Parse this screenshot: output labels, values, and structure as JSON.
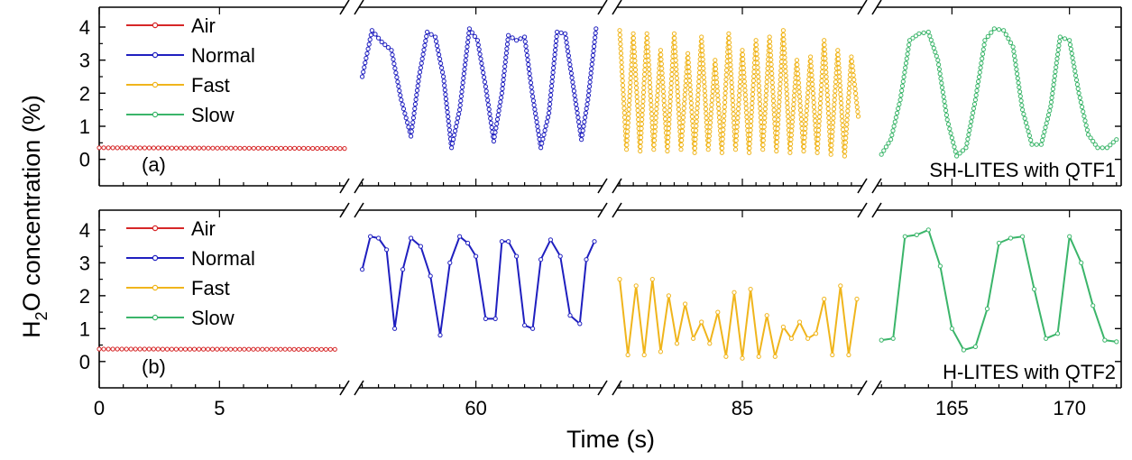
{
  "chart_data": {
    "type": "line",
    "xlabel": "Time (s)",
    "ylabel_parts": {
      "pre": "H",
      "sub": "2",
      "post": "O concentration (%)"
    },
    "ylim": [
      -0.8,
      4.6
    ],
    "yticks": [
      "0",
      "1",
      "2",
      "3",
      "4"
    ],
    "ytick_values": [
      0,
      1,
      2,
      3,
      4
    ],
    "x_segments": [
      {
        "xlim": [
          0,
          10.2
        ],
        "ticks": [
          0,
          5
        ],
        "tick_labels": [
          "0",
          "5"
        ]
      },
      {
        "xlim": [
          52.8,
          67.8
        ],
        "ticks": [
          60
        ],
        "tick_labels": [
          "60"
        ]
      },
      {
        "xlim": [
          75.8,
          93.8
        ],
        "ticks": [
          85
        ],
        "tick_labels": [
          "85"
        ]
      },
      {
        "xlim": [
          161.8,
          172.2
        ],
        "ticks": [
          165,
          170
        ],
        "tick_labels": [
          "165",
          "170"
        ]
      }
    ],
    "legend": {
      "position": "top-left",
      "entries": [
        {
          "name": "Air",
          "color": "#d62728"
        },
        {
          "name": "Normal",
          "color": "#1f1fbf"
        },
        {
          "name": "Fast",
          "color": "#f0b51c"
        },
        {
          "name": "Slow",
          "color": "#3bb56a"
        }
      ]
    },
    "panels": [
      {
        "label": "(a)",
        "method": "SH-LITES with QTF1",
        "series": [
          {
            "name": "Air",
            "segment": 0,
            "color": "#d62728",
            "x": [
              0,
              10.2
            ],
            "y": [
              0.35,
              0.33
            ],
            "dense": true
          },
          {
            "name": "Normal",
            "segment": 1,
            "color": "#1f1fbf",
            "dense": true,
            "x": [
              53.0,
              53.6,
              54.2,
              54.8,
              55.4,
              56.0,
              56.5,
              57.0,
              57.5,
              58.0,
              58.5,
              59.0,
              59.6,
              60.1,
              60.6,
              61.1,
              61.6,
              62.0,
              62.5,
              63.0,
              63.5,
              64.0,
              64.5,
              65.0,
              65.5,
              66.0,
              66.5,
              66.9,
              67.4
            ],
            "y": [
              2.5,
              3.9,
              3.55,
              3.3,
              1.8,
              0.7,
              2.5,
              3.85,
              3.7,
              2.5,
              0.35,
              1.5,
              3.95,
              3.6,
              2.2,
              0.55,
              2.0,
              3.75,
              3.6,
              3.7,
              1.9,
              0.35,
              1.4,
              3.85,
              3.8,
              2.2,
              0.6,
              1.8,
              3.95
            ]
          },
          {
            "name": "Fast",
            "segment": 2,
            "color": "#f0b51c",
            "dense": true,
            "x": [
              76.0,
              76.5,
              77.0,
              77.5,
              78.0,
              78.5,
              79.0,
              79.5,
              80.0,
              80.5,
              81.0,
              81.5,
              82.0,
              82.5,
              83.0,
              83.5,
              84.0,
              84.5,
              85.0,
              85.5,
              86.0,
              86.5,
              87.0,
              87.5,
              88.0,
              88.5,
              89.0,
              89.5,
              90.0,
              90.5,
              91.0,
              91.5,
              92.0,
              92.5,
              93.0,
              93.5
            ],
            "y": [
              3.9,
              0.3,
              3.8,
              0.25,
              3.8,
              0.3,
              3.3,
              0.25,
              3.8,
              0.3,
              3.2,
              0.2,
              3.7,
              0.3,
              3.0,
              0.2,
              3.8,
              0.3,
              3.3,
              0.2,
              3.6,
              0.3,
              3.7,
              0.25,
              3.9,
              0.2,
              3.0,
              0.25,
              3.1,
              0.2,
              3.6,
              0.15,
              3.3,
              0.1,
              3.1,
              1.3
            ]
          },
          {
            "name": "Slow",
            "segment": 3,
            "color": "#3bb56a",
            "dense": true,
            "x": [
              162.0,
              162.4,
              162.8,
              163.2,
              163.6,
              164.0,
              164.4,
              164.8,
              165.2,
              165.6,
              166.0,
              166.4,
              166.8,
              167.2,
              167.6,
              168.0,
              168.4,
              168.8,
              169.2,
              169.6,
              170.0,
              170.4,
              170.8,
              171.2,
              171.6,
              172.0
            ],
            "y": [
              0.15,
              0.6,
              1.8,
              3.6,
              3.8,
              3.85,
              3.0,
              1.2,
              0.1,
              0.35,
              1.8,
              3.6,
              3.95,
              3.9,
              3.4,
              1.5,
              0.45,
              0.45,
              1.6,
              3.7,
              3.6,
              2.0,
              0.75,
              0.35,
              0.35,
              0.6
            ]
          }
        ]
      },
      {
        "label": "(b)",
        "method": "H-LITES with QTF2",
        "series": [
          {
            "name": "Air",
            "segment": 0,
            "color": "#d62728",
            "x": [
              0,
              9.8
            ],
            "y": [
              0.38,
              0.37
            ],
            "dense": true
          },
          {
            "name": "Normal",
            "segment": 1,
            "color": "#1f1fbf",
            "dense": false,
            "x": [
              53.0,
              53.5,
              54.0,
              54.5,
              55.0,
              55.5,
              56.0,
              56.6,
              57.2,
              57.8,
              58.4,
              59.0,
              59.5,
              60.0,
              60.6,
              61.2,
              61.6,
              62.0,
              62.5,
              63.0,
              63.5,
              64.0,
              64.6,
              65.2,
              65.8,
              66.4,
              66.8,
              67.3
            ],
            "y": [
              2.8,
              3.8,
              3.75,
              3.4,
              1.0,
              2.8,
              3.75,
              3.5,
              2.6,
              0.8,
              3.0,
              3.8,
              3.6,
              3.2,
              1.3,
              1.3,
              3.65,
              3.65,
              3.2,
              1.1,
              1.0,
              3.1,
              3.7,
              3.2,
              1.4,
              1.15,
              3.1,
              3.65
            ]
          },
          {
            "name": "Fast",
            "segment": 2,
            "color": "#f0b51c",
            "dense": false,
            "x": [
              76.0,
              76.6,
              77.2,
              77.8,
              78.4,
              79.0,
              79.6,
              80.2,
              80.8,
              81.4,
              82.0,
              82.6,
              83.2,
              83.8,
              84.4,
              85.0,
              85.6,
              86.2,
              86.8,
              87.4,
              88.0,
              88.6,
              89.2,
              89.8,
              90.4,
              91.0,
              91.6,
              92.2,
              92.8,
              93.4
            ],
            "y": [
              2.5,
              0.2,
              2.3,
              0.2,
              2.5,
              0.3,
              2.0,
              0.55,
              1.75,
              0.7,
              1.2,
              0.55,
              1.5,
              0.15,
              2.1,
              0.1,
              2.2,
              0.15,
              1.4,
              0.15,
              1.05,
              0.7,
              1.2,
              0.7,
              0.85,
              1.9,
              0.2,
              2.3,
              0.2,
              1.9
            ]
          },
          {
            "name": "Slow",
            "segment": 3,
            "color": "#3bb56a",
            "dense": false,
            "x": [
              162.0,
              162.5,
              163.0,
              163.5,
              164.0,
              164.5,
              165.0,
              165.5,
              166.0,
              166.5,
              167.0,
              167.5,
              168.0,
              168.5,
              169.0,
              169.5,
              170.0,
              170.5,
              171.0,
              171.5,
              172.0
            ],
            "y": [
              0.65,
              0.7,
              3.8,
              3.85,
              4.0,
              2.9,
              1.0,
              0.35,
              0.45,
              1.6,
              3.6,
              3.75,
              3.8,
              2.2,
              0.7,
              0.85,
              3.8,
              3.0,
              1.7,
              0.65,
              0.6
            ]
          }
        ]
      }
    ]
  }
}
